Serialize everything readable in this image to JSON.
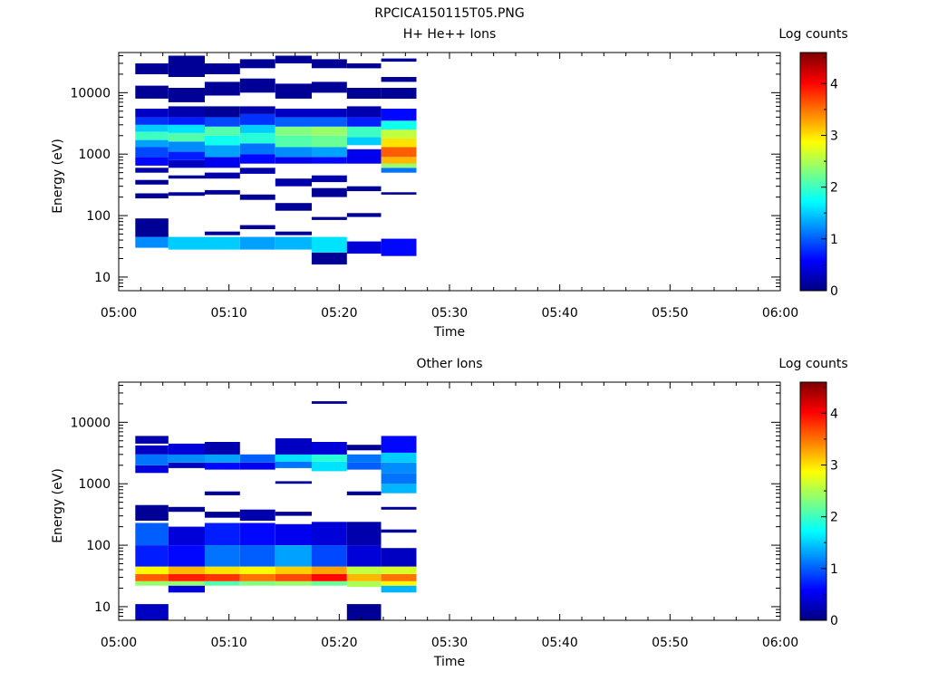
{
  "title": "RPCICA150115T05.PNG",
  "chart_data": [
    {
      "type": "heatmap",
      "title": "H+ He++ Ions",
      "xlabel": "Time",
      "ylabel": "Energy (eV)",
      "x_ticks": [
        "05:00",
        "05:10",
        "05:20",
        "05:30",
        "05:40",
        "05:50",
        "06:00"
      ],
      "xlim": [
        "05:00",
        "06:00"
      ],
      "y_scale": "log",
      "ylim": [
        6,
        45000
      ],
      "y_ticks": [
        "10",
        "100",
        "1000",
        "10000"
      ],
      "colorbar": {
        "label": "Log counts",
        "range": [
          0,
          4.6
        ],
        "ticks": [
          "0",
          "1",
          "2",
          "3",
          "4"
        ]
      },
      "time_bins": [
        [
          "05:01.5",
          "05:04.5"
        ],
        [
          "05:04.5",
          "05:07.8"
        ],
        [
          "05:07.8",
          "05:11.0"
        ],
        [
          "05:11.0",
          "05:14.2"
        ],
        [
          "05:14.2",
          "05:17.5"
        ],
        [
          "05:17.5",
          "05:20.7"
        ],
        [
          "05:20.7",
          "05:23.8"
        ],
        [
          "05:23.8",
          "05:27.0"
        ]
      ],
      "cells": [
        [
          0,
          30,
          45,
          1.2
        ],
        [
          0,
          45,
          90,
          0.1
        ],
        [
          0,
          190,
          230,
          0.1
        ],
        [
          0,
          320,
          380,
          0.1
        ],
        [
          0,
          500,
          600,
          0.2
        ],
        [
          0,
          650,
          900,
          0.6
        ],
        [
          0,
          900,
          1300,
          0.9
        ],
        [
          0,
          1300,
          1700,
          1.3
        ],
        [
          0,
          1700,
          2300,
          2.0
        ],
        [
          0,
          2300,
          3000,
          1.5
        ],
        [
          0,
          3000,
          4000,
          0.8
        ],
        [
          0,
          4000,
          5500,
          0.3
        ],
        [
          0,
          8000,
          13000,
          0.1
        ],
        [
          0,
          20000,
          30000,
          0.1
        ],
        [
          1,
          28,
          45,
          1.5
        ],
        [
          1,
          210,
          240,
          0.1
        ],
        [
          1,
          400,
          450,
          0.1
        ],
        [
          1,
          600,
          800,
          0.3
        ],
        [
          1,
          800,
          1100,
          0.7
        ],
        [
          1,
          1100,
          1600,
          1.2
        ],
        [
          1,
          1600,
          2200,
          2.1
        ],
        [
          1,
          2200,
          3000,
          1.6
        ],
        [
          1,
          3000,
          4000,
          0.7
        ],
        [
          1,
          4000,
          6000,
          0.2
        ],
        [
          1,
          7000,
          12000,
          0.1
        ],
        [
          1,
          18000,
          40000,
          0.1
        ],
        [
          2,
          28,
          45,
          1.5
        ],
        [
          2,
          48,
          55,
          0.1
        ],
        [
          2,
          220,
          260,
          0.1
        ],
        [
          2,
          400,
          500,
          0.2
        ],
        [
          2,
          600,
          900,
          0.5
        ],
        [
          2,
          900,
          1400,
          1.3
        ],
        [
          2,
          1400,
          2000,
          1.8
        ],
        [
          2,
          2000,
          2800,
          2.1
        ],
        [
          2,
          2800,
          4000,
          0.9
        ],
        [
          2,
          4000,
          6000,
          0.1
        ],
        [
          2,
          9000,
          15000,
          0.1
        ],
        [
          2,
          20000,
          30000,
          0.1
        ],
        [
          3,
          28,
          45,
          1.3
        ],
        [
          3,
          60,
          70,
          0.1
        ],
        [
          3,
          180,
          220,
          0.1
        ],
        [
          3,
          480,
          600,
          0.2
        ],
        [
          3,
          700,
          1000,
          0.6
        ],
        [
          3,
          1000,
          1500,
          1.1
        ],
        [
          3,
          1500,
          2200,
          1.9
        ],
        [
          3,
          2200,
          3000,
          1.5
        ],
        [
          3,
          3000,
          4500,
          0.8
        ],
        [
          3,
          4500,
          6000,
          0.2
        ],
        [
          3,
          10000,
          17000,
          0.1
        ],
        [
          3,
          25000,
          35000,
          0.1
        ],
        [
          4,
          28,
          45,
          1.4
        ],
        [
          4,
          48,
          55,
          0.1
        ],
        [
          4,
          120,
          160,
          0.1
        ],
        [
          4,
          300,
          400,
          0.2
        ],
        [
          4,
          700,
          900,
          0.5
        ],
        [
          4,
          900,
          1300,
          1.2
        ],
        [
          4,
          1300,
          2000,
          2.1
        ],
        [
          4,
          2000,
          2800,
          2.3
        ],
        [
          4,
          2800,
          4000,
          1.0
        ],
        [
          4,
          4000,
          5500,
          0.3
        ],
        [
          4,
          8000,
          14000,
          0.1
        ],
        [
          4,
          30000,
          40000,
          0.1
        ],
        [
          5,
          16,
          25,
          0.1
        ],
        [
          5,
          25,
          45,
          1.6
        ],
        [
          5,
          85,
          95,
          0.1
        ],
        [
          5,
          200,
          280,
          0.1
        ],
        [
          5,
          350,
          450,
          0.2
        ],
        [
          5,
          700,
          900,
          0.6
        ],
        [
          5,
          900,
          1300,
          1.3
        ],
        [
          5,
          1300,
          2000,
          2.2
        ],
        [
          5,
          2000,
          2800,
          2.4
        ],
        [
          5,
          2800,
          4000,
          1.0
        ],
        [
          5,
          4000,
          5500,
          0.3
        ],
        [
          5,
          10000,
          15000,
          0.1
        ],
        [
          5,
          25000,
          35000,
          0.1
        ],
        [
          6,
          24,
          38,
          0.4
        ],
        [
          6,
          95,
          110,
          0.1
        ],
        [
          6,
          250,
          300,
          0.1
        ],
        [
          6,
          700,
          1200,
          0.5
        ],
        [
          6,
          1400,
          1900,
          1.5
        ],
        [
          6,
          1900,
          2800,
          2.0
        ],
        [
          6,
          2800,
          4000,
          0.7
        ],
        [
          6,
          4000,
          6000,
          0.2
        ],
        [
          6,
          8000,
          12000,
          0.1
        ],
        [
          6,
          25000,
          30000,
          0.1
        ],
        [
          7,
          22,
          42,
          0.6
        ],
        [
          7,
          220,
          240,
          0.1
        ],
        [
          7,
          500,
          600,
          1.1
        ],
        [
          7,
          600,
          700,
          2.4
        ],
        [
          7,
          700,
          900,
          3.2
        ],
        [
          7,
          900,
          1300,
          3.6
        ],
        [
          7,
          1300,
          1800,
          3.0
        ],
        [
          7,
          1800,
          2500,
          2.6
        ],
        [
          7,
          2500,
          3500,
          1.8
        ],
        [
          7,
          3500,
          5500,
          0.6
        ],
        [
          7,
          8000,
          12000,
          0.1
        ],
        [
          7,
          15000,
          18000,
          0.1
        ],
        [
          7,
          32000,
          36000,
          0.1
        ]
      ]
    },
    {
      "type": "heatmap",
      "title": "Other Ions",
      "xlabel": "Time",
      "ylabel": "Energy (eV)",
      "x_ticks": [
        "05:00",
        "05:10",
        "05:20",
        "05:30",
        "05:40",
        "05:50",
        "06:00"
      ],
      "xlim": [
        "05:00",
        "06:00"
      ],
      "y_scale": "log",
      "ylim": [
        6,
        45000
      ],
      "y_ticks": [
        "10",
        "100",
        "1000",
        "10000"
      ],
      "colorbar": {
        "label": "Log counts",
        "range": [
          0,
          4.6
        ],
        "ticks": [
          "0",
          "1",
          "2",
          "3",
          "4"
        ]
      },
      "time_bins": [
        [
          "05:01.5",
          "05:04.5"
        ],
        [
          "05:04.5",
          "05:07.8"
        ],
        [
          "05:07.8",
          "05:11.0"
        ],
        [
          "05:11.0",
          "05:14.2"
        ],
        [
          "05:14.2",
          "05:17.5"
        ],
        [
          "05:17.5",
          "05:20.7"
        ],
        [
          "05:20.7",
          "05:23.8"
        ],
        [
          "05:23.8",
          "05:27.0"
        ]
      ],
      "cells": [
        [
          0,
          6,
          11,
          0.3
        ],
        [
          0,
          22,
          26,
          2.4
        ],
        [
          0,
          26,
          34,
          3.6
        ],
        [
          0,
          34,
          45,
          2.9
        ],
        [
          0,
          45,
          100,
          0.7
        ],
        [
          0,
          100,
          230,
          1.0
        ],
        [
          0,
          250,
          450,
          0.1
        ],
        [
          0,
          1500,
          2000,
          0.4
        ],
        [
          0,
          2000,
          3000,
          1.1
        ],
        [
          0,
          3000,
          4200,
          0.3
        ],
        [
          0,
          4500,
          6000,
          0.2
        ],
        [
          1,
          17,
          22,
          0.4
        ],
        [
          1,
          22,
          26,
          2.4
        ],
        [
          1,
          26,
          34,
          3.9
        ],
        [
          1,
          34,
          45,
          3.2
        ],
        [
          1,
          45,
          100,
          0.6
        ],
        [
          1,
          100,
          200,
          0.4
        ],
        [
          1,
          350,
          420,
          0.1
        ],
        [
          1,
          1800,
          2200,
          0.3
        ],
        [
          1,
          2200,
          3000,
          1.2
        ],
        [
          1,
          3000,
          4500,
          0.4
        ],
        [
          2,
          22,
          26,
          2.1
        ],
        [
          2,
          26,
          34,
          3.8
        ],
        [
          2,
          34,
          45,
          3.0
        ],
        [
          2,
          45,
          100,
          1.1
        ],
        [
          2,
          100,
          230,
          0.7
        ],
        [
          2,
          280,
          350,
          0.1
        ],
        [
          2,
          650,
          750,
          0.1
        ],
        [
          2,
          1700,
          2200,
          0.6
        ],
        [
          2,
          2200,
          3000,
          1.3
        ],
        [
          2,
          3000,
          4800,
          0.2
        ],
        [
          3,
          22,
          26,
          2.3
        ],
        [
          3,
          26,
          34,
          3.5
        ],
        [
          3,
          34,
          45,
          2.9
        ],
        [
          3,
          45,
          100,
          1.0
        ],
        [
          3,
          100,
          230,
          0.6
        ],
        [
          3,
          250,
          380,
          0.2
        ],
        [
          3,
          1700,
          2200,
          0.5
        ],
        [
          3,
          2200,
          3000,
          1.0
        ],
        [
          4,
          22,
          26,
          2.4
        ],
        [
          4,
          26,
          34,
          3.7
        ],
        [
          4,
          34,
          45,
          3.1
        ],
        [
          4,
          45,
          100,
          1.3
        ],
        [
          4,
          100,
          220,
          0.5
        ],
        [
          4,
          300,
          350,
          0.1
        ],
        [
          4,
          1000,
          1100,
          0.1
        ],
        [
          4,
          1800,
          2300,
          1.1
        ],
        [
          4,
          2300,
          3000,
          1.6
        ],
        [
          4,
          3000,
          5500,
          0.3
        ],
        [
          5,
          22,
          26,
          2.2
        ],
        [
          5,
          26,
          34,
          4.0
        ],
        [
          5,
          34,
          45,
          3.3
        ],
        [
          5,
          45,
          100,
          0.9
        ],
        [
          5,
          100,
          240,
          0.4
        ],
        [
          5,
          1600,
          2300,
          1.6
        ],
        [
          5,
          2300,
          3000,
          1.9
        ],
        [
          5,
          3000,
          4800,
          0.4
        ],
        [
          5,
          20000,
          22000,
          0.1
        ],
        [
          6,
          6,
          11,
          0.1
        ],
        [
          6,
          21,
          26,
          2.5
        ],
        [
          6,
          26,
          34,
          3.2
        ],
        [
          6,
          34,
          45,
          2.6
        ],
        [
          6,
          45,
          100,
          0.4
        ],
        [
          6,
          100,
          240,
          0.2
        ],
        [
          6,
          650,
          750,
          0.1
        ],
        [
          6,
          1700,
          2200,
          1.0
        ],
        [
          6,
          2200,
          3000,
          1.1
        ],
        [
          6,
          3500,
          4300,
          0.1
        ],
        [
          7,
          17,
          22,
          1.4
        ],
        [
          7,
          22,
          26,
          2.9
        ],
        [
          7,
          26,
          34,
          3.5
        ],
        [
          7,
          34,
          45,
          2.7
        ],
        [
          7,
          45,
          90,
          0.3
        ],
        [
          7,
          160,
          180,
          0.1
        ],
        [
          7,
          380,
          420,
          0.1
        ],
        [
          7,
          700,
          1000,
          1.4
        ],
        [
          7,
          1000,
          1500,
          1.1
        ],
        [
          7,
          1500,
          2200,
          1.2
        ],
        [
          7,
          2200,
          3200,
          1.5
        ],
        [
          7,
          3200,
          6000,
          0.6
        ]
      ]
    }
  ]
}
